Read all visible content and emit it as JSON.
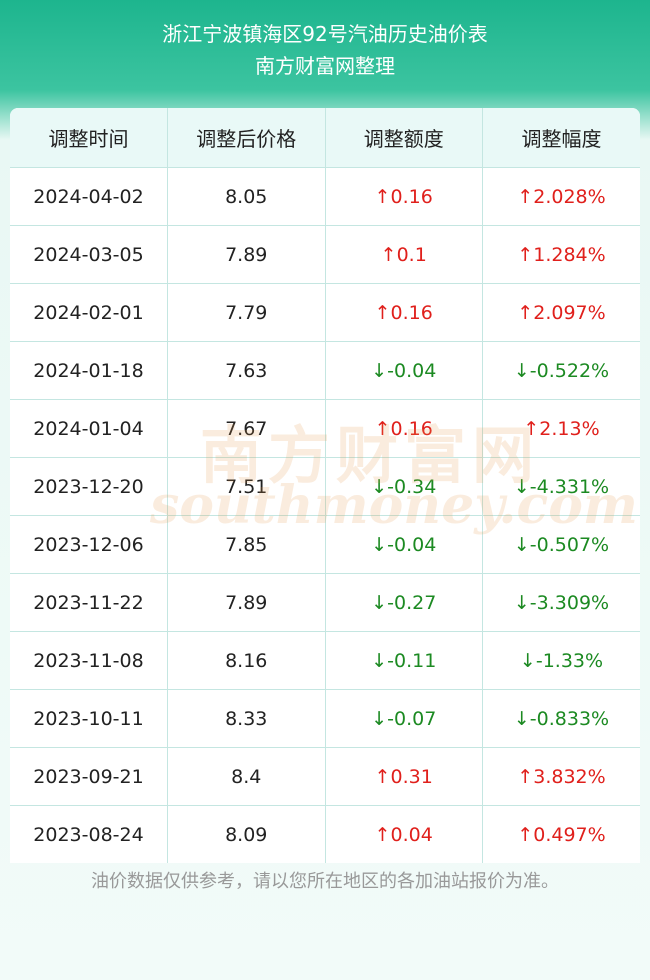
{
  "header": {
    "title": "浙江宁波镇海区92号汽油历史油价表",
    "subtitle": "南方财富网整理"
  },
  "table": {
    "columns": [
      "调整时间",
      "调整后价格",
      "调整额度",
      "调整幅度"
    ],
    "rows": [
      [
        "2024-04-02",
        "8.05",
        "↑0.16",
        "↑2.028%"
      ],
      [
        "2024-03-05",
        "7.89",
        "↑0.1",
        "↑1.284%"
      ],
      [
        "2024-02-01",
        "7.79",
        "↑0.16",
        "↑2.097%"
      ],
      [
        "2024-01-18",
        "7.63",
        "↓-0.04",
        "↓-0.522%"
      ],
      [
        "2024-01-04",
        "7.67",
        "↑0.16",
        "↑2.13%"
      ],
      [
        "2023-12-20",
        "7.51",
        "↓-0.34",
        "↓-4.331%"
      ],
      [
        "2023-12-06",
        "7.85",
        "↓-0.04",
        "↓-0.507%"
      ],
      [
        "2023-11-22",
        "7.89",
        "↓-0.27",
        "↓-3.309%"
      ],
      [
        "2023-11-08",
        "8.16",
        "↓-0.11",
        "↓-1.33%"
      ],
      [
        "2023-10-11",
        "8.33",
        "↓-0.07",
        "↓-0.833%"
      ],
      [
        "2023-09-21",
        "8.4",
        "↑0.31",
        "↑3.832%"
      ],
      [
        "2023-08-24",
        "8.09",
        "↑0.04",
        "↑0.497%"
      ]
    ]
  },
  "watermark": {
    "name": "南方财富网",
    "site": "southmoney.com"
  },
  "footer": {
    "note": "油价数据仅供参考，请以您所在地区的各加油站报价为准。"
  }
}
